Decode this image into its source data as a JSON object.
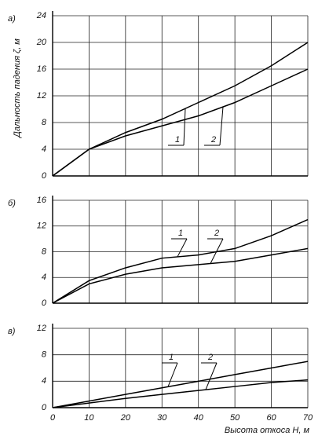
{
  "chart_data": [
    {
      "type": "line",
      "panel_label": "а)",
      "ylabel": "Дальность падения ζ, м",
      "x": [
        0,
        10,
        20,
        30,
        40,
        50,
        60,
        70
      ],
      "series": [
        {
          "name": "1",
          "color": "#000000",
          "values": [
            0,
            4,
            6.5,
            8.5,
            11,
            13.5,
            16.5,
            20
          ]
        },
        {
          "name": "2",
          "color": "#000000",
          "values": [
            0,
            4,
            6,
            7.5,
            9,
            11,
            13.5,
            16
          ]
        }
      ],
      "xlim": [
        0,
        70
      ],
      "xticks": [
        0,
        10,
        20,
        30,
        40,
        50,
        60,
        70
      ],
      "ylim": [
        0,
        24
      ],
      "yticks": [
        0,
        4,
        8,
        12,
        16,
        20,
        24
      ],
      "grid": true
    },
    {
      "type": "line",
      "panel_label": "б)",
      "x": [
        0,
        10,
        20,
        30,
        40,
        50,
        60,
        70
      ],
      "series": [
        {
          "name": "1",
          "color": "#000000",
          "values": [
            0,
            3.5,
            5.5,
            7,
            7.5,
            8.5,
            10.5,
            13
          ]
        },
        {
          "name": "2",
          "color": "#000000",
          "values": [
            0,
            3,
            4.5,
            5.5,
            6,
            6.5,
            7.5,
            8.5
          ]
        }
      ],
      "xlim": [
        0,
        70
      ],
      "xticks": [
        0,
        10,
        20,
        30,
        40,
        50,
        60,
        70
      ],
      "ylim": [
        0,
        16
      ],
      "yticks": [
        0,
        4,
        8,
        12,
        16
      ],
      "grid": true
    },
    {
      "type": "line",
      "panel_label": "в)",
      "xlabel": "Высота откоса H, м",
      "x": [
        0,
        10,
        20,
        30,
        40,
        50,
        60,
        70
      ],
      "series": [
        {
          "name": "1",
          "color": "#000000",
          "values": [
            0,
            1,
            2,
            3,
            4,
            5,
            6,
            7
          ]
        },
        {
          "name": "2",
          "color": "#000000",
          "values": [
            0,
            0.7,
            1.4,
            2,
            2.6,
            3.2,
            3.8,
            4.2
          ]
        }
      ],
      "xlim": [
        0,
        70
      ],
      "xticks": [
        0,
        10,
        20,
        30,
        40,
        50,
        60,
        70
      ],
      "ylim": [
        0,
        12
      ],
      "yticks": [
        0,
        4,
        8,
        12
      ],
      "grid": true
    }
  ]
}
